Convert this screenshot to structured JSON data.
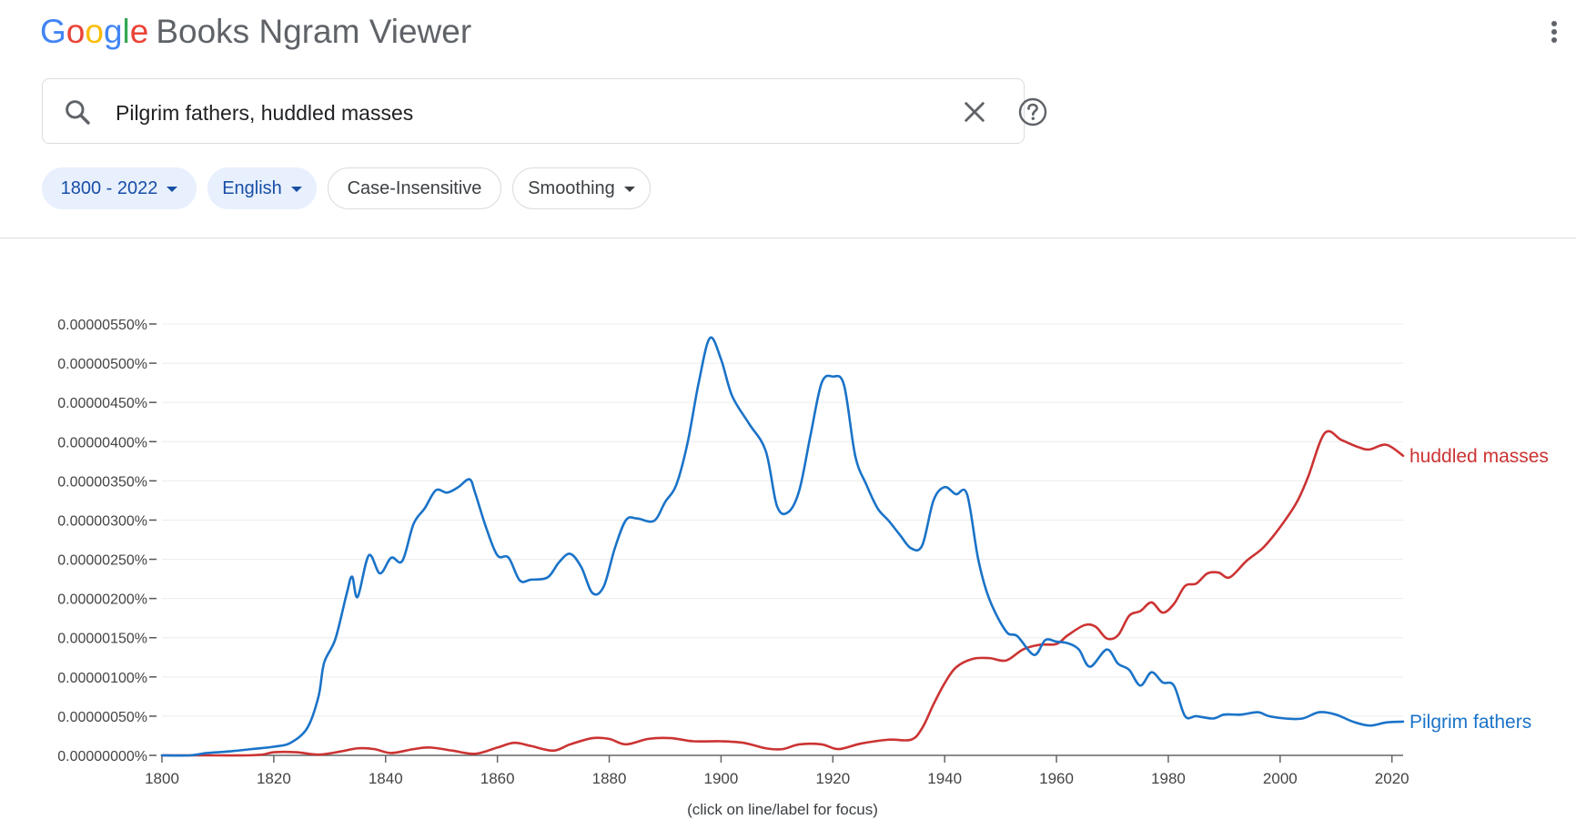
{
  "header": {
    "logo_letters": [
      {
        "ch": "G",
        "color": "#4285f4"
      },
      {
        "ch": "o",
        "color": "#ea4335"
      },
      {
        "ch": "o",
        "color": "#fbbc05"
      },
      {
        "ch": "g",
        "color": "#4285f4"
      },
      {
        "ch": "l",
        "color": "#34a853"
      },
      {
        "ch": "e",
        "color": "#ea4335"
      }
    ],
    "app_name": "Books Ngram Viewer",
    "menu_icon": "more-vert-icon"
  },
  "search": {
    "value": "Pilgrim fathers, huddled masses",
    "search_icon": "search-icon",
    "clear_icon": "close-icon",
    "help_icon": "help-circle-icon"
  },
  "filters": {
    "year_range": "1800 - 2022",
    "corpus": "English",
    "case": "Case-Insensitive",
    "smoothing": "Smoothing"
  },
  "chart_data": {
    "type": "line",
    "title": "",
    "xlabel": "",
    "ylabel": "",
    "xlim": [
      1800,
      2022
    ],
    "ylim": [
      0,
      5.5e-06
    ],
    "x_ticks": [
      1800,
      1820,
      1840,
      1860,
      1880,
      1900,
      1920,
      1940,
      1960,
      1980,
      2000,
      2020
    ],
    "y_ticks": [
      {
        "value": 0,
        "label": "0.00000000%"
      },
      {
        "value": 5e-07,
        "label": "0.00000050%"
      },
      {
        "value": 1e-06,
        "label": "0.00000100%"
      },
      {
        "value": 1.5e-06,
        "label": "0.00000150%"
      },
      {
        "value": 2e-06,
        "label": "0.00000200%"
      },
      {
        "value": 2.5e-06,
        "label": "0.00000250%"
      },
      {
        "value": 3e-06,
        "label": "0.00000300%"
      },
      {
        "value": 3.5e-06,
        "label": "0.00000350%"
      },
      {
        "value": 4e-06,
        "label": "0.00000400%"
      },
      {
        "value": 4.5e-06,
        "label": "0.00000450%"
      },
      {
        "value": 5e-06,
        "label": "0.00000500%"
      },
      {
        "value": 5.5e-06,
        "label": "0.00000550%"
      }
    ],
    "grid": true,
    "legend": "inline labels at line ends (right)",
    "caption": "(click on line/label for focus)",
    "series": [
      {
        "name": "huddled masses",
        "color": "#cc3333",
        "points": [
          [
            1800,
            0
          ],
          [
            1805,
            0
          ],
          [
            1810,
            0
          ],
          [
            1815,
            0
          ],
          [
            1818,
            1e-08
          ],
          [
            1820,
            4e-08
          ],
          [
            1824,
            4e-08
          ],
          [
            1828,
            1e-08
          ],
          [
            1832,
            5e-08
          ],
          [
            1835,
            9e-08
          ],
          [
            1838,
            8e-08
          ],
          [
            1841,
            3e-08
          ],
          [
            1845,
            8e-08
          ],
          [
            1848,
            1e-07
          ],
          [
            1852,
            6e-08
          ],
          [
            1856,
            2e-08
          ],
          [
            1860,
            1e-07
          ],
          [
            1863,
            1.6e-07
          ],
          [
            1866,
            1.2e-07
          ],
          [
            1870,
            6e-08
          ],
          [
            1873,
            1.4e-07
          ],
          [
            1877,
            2.2e-07
          ],
          [
            1880,
            2.1e-07
          ],
          [
            1883,
            1.4e-07
          ],
          [
            1887,
            2.1e-07
          ],
          [
            1891,
            2.2e-07
          ],
          [
            1895,
            1.8e-07
          ],
          [
            1900,
            1.8e-07
          ],
          [
            1904,
            1.6e-07
          ],
          [
            1908,
            9e-08
          ],
          [
            1911,
            8e-08
          ],
          [
            1914,
            1.4e-07
          ],
          [
            1918,
            1.4e-07
          ],
          [
            1921,
            8e-08
          ],
          [
            1925,
            1.5e-07
          ],
          [
            1930,
            2e-07
          ],
          [
            1934,
            2e-07
          ],
          [
            1936,
            3.5e-07
          ],
          [
            1938,
            6.5e-07
          ],
          [
            1940,
            9.2e-07
          ],
          [
            1942,
            1.12e-06
          ],
          [
            1945,
            1.23e-06
          ],
          [
            1948,
            1.24e-06
          ],
          [
            1951,
            1.21e-06
          ],
          [
            1954,
            1.35e-06
          ],
          [
            1957,
            1.41e-06
          ],
          [
            1960,
            1.42e-06
          ],
          [
            1962,
            1.53e-06
          ],
          [
            1965,
            1.66e-06
          ],
          [
            1967,
            1.64e-06
          ],
          [
            1969,
            1.49e-06
          ],
          [
            1971,
            1.53e-06
          ],
          [
            1973,
            1.78e-06
          ],
          [
            1975,
            1.84e-06
          ],
          [
            1977,
            1.95e-06
          ],
          [
            1979,
            1.82e-06
          ],
          [
            1981,
            1.93e-06
          ],
          [
            1983,
            2.16e-06
          ],
          [
            1985,
            2.19e-06
          ],
          [
            1987,
            2.32e-06
          ],
          [
            1989,
            2.33e-06
          ],
          [
            1991,
            2.27e-06
          ],
          [
            1994,
            2.48e-06
          ],
          [
            1997,
            2.65e-06
          ],
          [
            2000,
            2.91e-06
          ],
          [
            2003,
            3.23e-06
          ],
          [
            2005,
            3.55e-06
          ],
          [
            2008,
            4.11e-06
          ],
          [
            2011,
            4.02e-06
          ],
          [
            2014,
            3.93e-06
          ],
          [
            2016,
            3.9e-06
          ],
          [
            2019,
            3.96e-06
          ],
          [
            2022,
            3.82e-06
          ]
        ]
      },
      {
        "name": "Pilgrim fathers",
        "color": "#1a73c8",
        "points": [
          [
            1800,
            0
          ],
          [
            1805,
            0
          ],
          [
            1808,
            3e-08
          ],
          [
            1812,
            5e-08
          ],
          [
            1816,
            8e-08
          ],
          [
            1820,
            1.1e-07
          ],
          [
            1823,
            1.6e-07
          ],
          [
            1826,
            3.5e-07
          ],
          [
            1828,
            7.5e-07
          ],
          [
            1829,
            1.18e-06
          ],
          [
            1831,
            1.48e-06
          ],
          [
            1833,
            2.05e-06
          ],
          [
            1834,
            2.28e-06
          ],
          [
            1835,
            2.02e-06
          ],
          [
            1837,
            2.55e-06
          ],
          [
            1839,
            2.32e-06
          ],
          [
            1841,
            2.52e-06
          ],
          [
            1843,
            2.48e-06
          ],
          [
            1845,
            2.95e-06
          ],
          [
            1847,
            3.15e-06
          ],
          [
            1849,
            3.38e-06
          ],
          [
            1851,
            3.35e-06
          ],
          [
            1853,
            3.42e-06
          ],
          [
            1855,
            3.52e-06
          ],
          [
            1856,
            3.35e-06
          ],
          [
            1858,
            2.9e-06
          ],
          [
            1860,
            2.55e-06
          ],
          [
            1862,
            2.52e-06
          ],
          [
            1864,
            2.23e-06
          ],
          [
            1866,
            2.24e-06
          ],
          [
            1869,
            2.27e-06
          ],
          [
            1871,
            2.46e-06
          ],
          [
            1873,
            2.57e-06
          ],
          [
            1875,
            2.4e-06
          ],
          [
            1877,
            2.07e-06
          ],
          [
            1879,
            2.15e-06
          ],
          [
            1881,
            2.64e-06
          ],
          [
            1883,
            3e-06
          ],
          [
            1885,
            3.02e-06
          ],
          [
            1888,
            2.99e-06
          ],
          [
            1890,
            3.23e-06
          ],
          [
            1892,
            3.45e-06
          ],
          [
            1894,
            3.98e-06
          ],
          [
            1896,
            4.75e-06
          ],
          [
            1898,
            5.32e-06
          ],
          [
            1900,
            5.05e-06
          ],
          [
            1902,
            4.58e-06
          ],
          [
            1905,
            4.23e-06
          ],
          [
            1908,
            3.88e-06
          ],
          [
            1910,
            3.18e-06
          ],
          [
            1912,
            3.1e-06
          ],
          [
            1914,
            3.38e-06
          ],
          [
            1916,
            4.08e-06
          ],
          [
            1918,
            4.75e-06
          ],
          [
            1920,
            4.83e-06
          ],
          [
            1922,
            4.72e-06
          ],
          [
            1924,
            3.82e-06
          ],
          [
            1926,
            3.45e-06
          ],
          [
            1928,
            3.15e-06
          ],
          [
            1930,
            2.99e-06
          ],
          [
            1932,
            2.81e-06
          ],
          [
            1934,
            2.64e-06
          ],
          [
            1936,
            2.68e-06
          ],
          [
            1938,
            3.25e-06
          ],
          [
            1940,
            3.42e-06
          ],
          [
            1942,
            3.33e-06
          ],
          [
            1944,
            3.33e-06
          ],
          [
            1946,
            2.5e-06
          ],
          [
            1948,
            1.99e-06
          ],
          [
            1951,
            1.58e-06
          ],
          [
            1953,
            1.52e-06
          ],
          [
            1956,
            1.28e-06
          ],
          [
            1958,
            1.47e-06
          ],
          [
            1960,
            1.45e-06
          ],
          [
            1962,
            1.43e-06
          ],
          [
            1964,
            1.35e-06
          ],
          [
            1966,
            1.13e-06
          ],
          [
            1969,
            1.35e-06
          ],
          [
            1971,
            1.17e-06
          ],
          [
            1973,
            1.09e-06
          ],
          [
            1975,
            8.9e-07
          ],
          [
            1977,
            1.06e-06
          ],
          [
            1979,
            9.3e-07
          ],
          [
            1981,
            8.9e-07
          ],
          [
            1983,
            5e-07
          ],
          [
            1985,
            5e-07
          ],
          [
            1988,
            4.7e-07
          ],
          [
            1990,
            5.2e-07
          ],
          [
            1993,
            5.2e-07
          ],
          [
            1996,
            5.5e-07
          ],
          [
            1998,
            5e-07
          ],
          [
            2001,
            4.7e-07
          ],
          [
            2004,
            4.7e-07
          ],
          [
            2007,
            5.5e-07
          ],
          [
            2010,
            5.2e-07
          ],
          [
            2013,
            4.3e-07
          ],
          [
            2016,
            3.8e-07
          ],
          [
            2019,
            4.2e-07
          ],
          [
            2022,
            4.3e-07
          ]
        ]
      }
    ]
  }
}
